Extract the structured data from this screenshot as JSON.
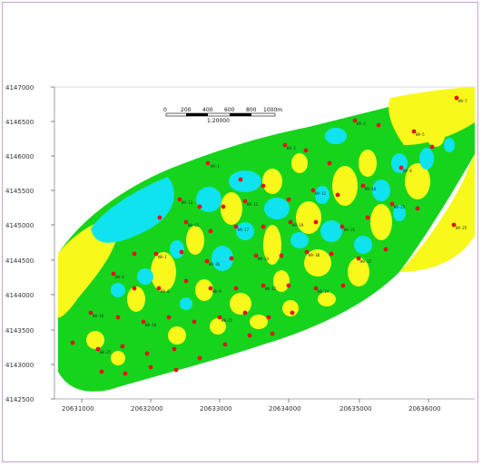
{
  "colors": {
    "green": "#16d41c",
    "yellow": "#f8f81a",
    "cyan": "#0fe3f0",
    "well": "#e0141a",
    "frame": "#c9a3cf"
  },
  "axes": {
    "y_ticks": [
      "4147000",
      "4146500",
      "4146000",
      "4145500",
      "4145000",
      "4144500",
      "4144000",
      "4143500",
      "4143000",
      "4142500"
    ],
    "x_ticks": [
      "20631000",
      "20632000",
      "20633000",
      "20634000",
      "20635000",
      "20636000"
    ]
  },
  "scale_bar": {
    "ticks": [
      "0",
      "200",
      "400",
      "600",
      "800",
      "1000m"
    ],
    "ratio": "1:20000"
  },
  "well_labels": [
    "H9-1",
    "H9-2",
    "H9-3",
    "H9-5",
    "H9-7",
    "H9-8",
    "H9-10",
    "H9-11",
    "H9-12",
    "H9-13",
    "H9-15",
    "H9-17",
    "H9-19",
    "H9-21",
    "H9-23",
    "H9-25",
    "H9-27",
    "H9-30",
    "H9-33",
    "H9-36",
    "H8-1",
    "H8-4",
    "H8-6",
    "H8-9",
    "H8-12",
    "H8-14",
    "H8-16",
    "H8-18",
    "H8-21",
    "H8-25"
  ]
}
